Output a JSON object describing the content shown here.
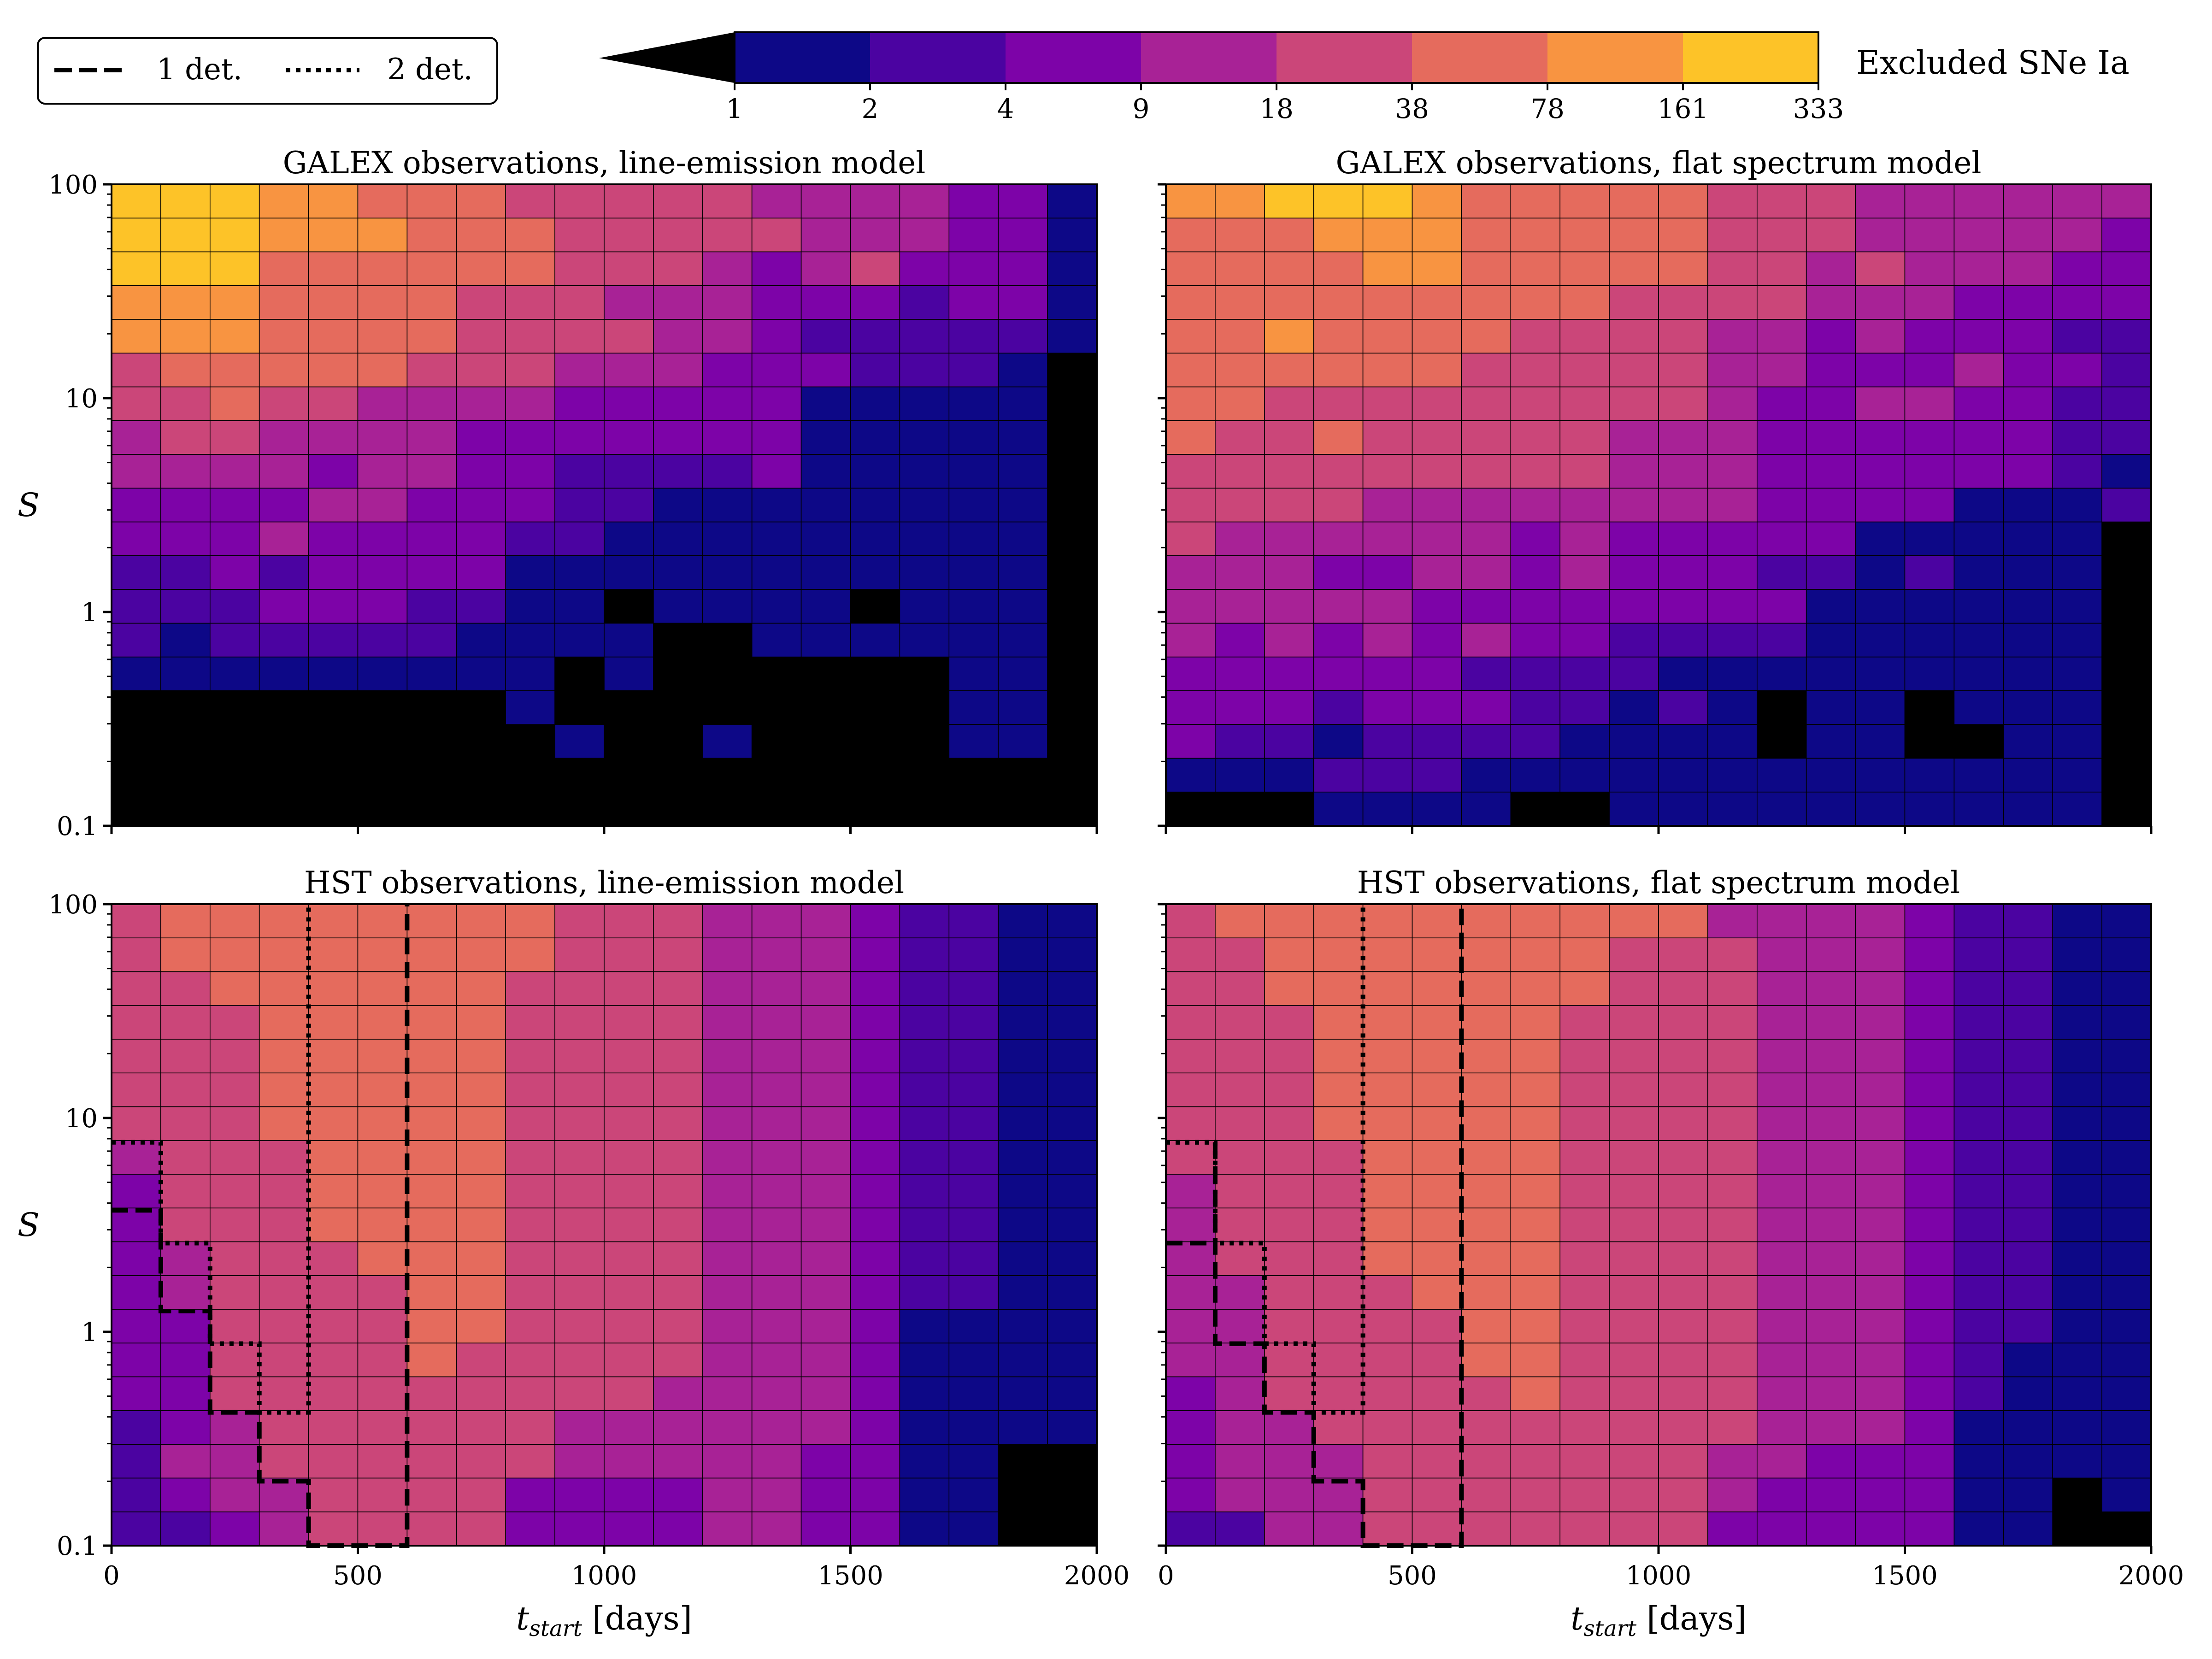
{
  "colorbar": {
    "label": "Excluded SNe Ia",
    "ticks": [
      "1",
      "2",
      "4",
      "9",
      "18",
      "38",
      "78",
      "161",
      "333"
    ],
    "colors": [
      "#0d0887",
      "#4b03a1",
      "#7d03a8",
      "#a82296",
      "#cb4679",
      "#e56b5d",
      "#f89441",
      "#fdc328",
      "#f0f921"
    ],
    "under_color": "#000000"
  },
  "legend": {
    "items": [
      {
        "label": "1 det.",
        "style": "dashed"
      },
      {
        "label": "2 det.",
        "style": "dotted"
      }
    ]
  },
  "chart_data": [
    {
      "type": "heatmap",
      "title": "GALEX observations, line-emission model",
      "xlabel": "",
      "ylabel": "S",
      "xlim": [
        0,
        2000
      ],
      "ylim": [
        0.1,
        100
      ],
      "yscale": "log",
      "x_ticks": [
        "0",
        "500",
        "1000",
        "1500",
        "2000"
      ],
      "y_ticks": [
        "0.1",
        "1",
        "10",
        "100"
      ],
      "legend_rows_top_to_bottom": true,
      "grid": [
        "88877666555554444331",
        "88877766655555444331",
        "88866666655543453331",
        "77766665554443332331",
        "77766665555443222221",
        "56666655544433322210",
        "55655444433333111110",
        "45544443333333111110",
        "44443443322223111110",
        "33334433322111111110",
        "33343333221111111110",
        "22323333111111111110",
        "22233322110111101110",
        "21222221111001111110",
        "11111111101000000110",
        "00000000100000000110",
        "00000000010010000110",
        "00000000000000000000",
        "00000000000000000000"
      ]
    },
    {
      "type": "heatmap",
      "title": "GALEX observations, flat spectrum model",
      "xlabel": "",
      "ylabel": "",
      "xlim": [
        0,
        2000
      ],
      "ylim": [
        0.1,
        100
      ],
      "yscale": "log",
      "x_ticks": [
        "0",
        "500",
        "1000",
        "1500",
        "2000"
      ],
      "y_ticks": [
        "0.1",
        "1",
        "10",
        "100"
      ],
      "grid": [
        "77888766666555444444",
        "66677766666555444443",
        "66667766666554544433",
        "66666666655554443333",
        "66766665555443433322",
        "66666655555443334332",
        "66555555555433443322",
        "65565555544433333322",
        "55555555544433333321",
        "55554444444433331112",
        "54444443433333111110",
        "44433443433322121110",
        "44444333333331111110",
        "43434343322221111110",
        "33333322221111111110",
        "33323332212101101110",
        "32212222111101100110",
        "11122211111111111110",
        "00011110011111111110"
      ]
    },
    {
      "type": "heatmap",
      "title": "HST observations, line-emission model",
      "xlabel": "t_start [days]",
      "ylabel": "S",
      "xlim": [
        0,
        2000
      ],
      "ylim": [
        0.1,
        100
      ],
      "yscale": "log",
      "x_ticks": [
        "0",
        "500",
        "1000",
        "1500",
        "2000"
      ],
      "y_ticks": [
        "0.1",
        "1",
        "10",
        "100"
      ],
      "grid": [
        "56666666655544432211",
        "56666666655544432211",
        "55666666555544432211",
        "55566666555544432211",
        "55566666555544432211",
        "55566666555544432211",
        "55566666555544432211",
        "45556666555544432211",
        "35556666555544432211",
        "35556666555544432211",
        "34555666555544432211",
        "34555566555544432211",
        "33555566555544431111",
        "33555565555544431111",
        "33555555555444431111",
        "23455555544444431111",
        "24455555544444331100",
        "23445555333344331100",
        "22345555333344331100"
      ]
    },
    {
      "type": "heatmap",
      "title": "HST observations, flat spectrum model",
      "xlabel": "t_start [days]",
      "ylabel": "",
      "xlim": [
        0,
        2000
      ],
      "ylim": [
        0.1,
        100
      ],
      "yscale": "log",
      "x_ticks": [
        "0",
        "500",
        "1000",
        "1500",
        "2000"
      ],
      "y_ticks": [
        "0.1",
        "1",
        "10",
        "100"
      ],
      "grid": [
        "56666666666444432211",
        "55666666655544432211",
        "55666666655544432211",
        "55566666555544432211",
        "55566666555544432211",
        "55566666555544432211",
        "55566666555544432211",
        "55556666555544432211",
        "45556666555544432211",
        "45556666555544432211",
        "45556666555544432211",
        "44555666555544432211",
        "44555566555544432211",
        "44555566555544432111",
        "34555556555544432111",
        "34455555555544431111",
        "34445555555443331111",
        "34445555555433331101",
        "22445555555333331100"
      ]
    }
  ],
  "contours": {
    "hst_line": {
      "one_det": [
        [
          0,
          3.7
        ],
        [
          100,
          3.7
        ],
        [
          100,
          1.25
        ],
        [
          200,
          1.25
        ],
        [
          200,
          0.42
        ],
        [
          300,
          0.42
        ],
        [
          300,
          0.2
        ],
        [
          400,
          0.2
        ],
        [
          400,
          0.1
        ],
        [
          600,
          0.1
        ],
        [
          600,
          100
        ]
      ],
      "two_det": [
        [
          0,
          7.7
        ],
        [
          100,
          7.7
        ],
        [
          100,
          2.6
        ],
        [
          200,
          2.6
        ],
        [
          200,
          0.88
        ],
        [
          300,
          0.88
        ],
        [
          300,
          0.42
        ],
        [
          400,
          0.42
        ],
        [
          400,
          100
        ]
      ]
    },
    "hst_flat": {
      "one_det": [
        [
          100,
          7.7
        ],
        [
          100,
          0.88
        ],
        [
          200,
          0.88
        ],
        [
          200,
          0.42
        ],
        [
          300,
          0.42
        ],
        [
          300,
          0.2
        ],
        [
          400,
          0.2
        ],
        [
          400,
          0.1
        ],
        [
          600,
          0.1
        ],
        [
          600,
          100
        ]
      ],
      "two_det": [
        [
          0,
          7.7
        ],
        [
          100,
          7.7
        ],
        [
          100,
          2.6
        ],
        [
          200,
          2.6
        ],
        [
          200,
          0.88
        ],
        [
          300,
          0.88
        ],
        [
          300,
          0.42
        ],
        [
          400,
          0.42
        ],
        [
          400,
          100
        ]
      ],
      "one_det_left": [
        [
          0,
          2.6
        ],
        [
          100,
          2.6
        ]
      ],
      "two_det_left": [
        [
          0,
          7.7
        ],
        [
          100,
          7.7
        ]
      ]
    }
  }
}
